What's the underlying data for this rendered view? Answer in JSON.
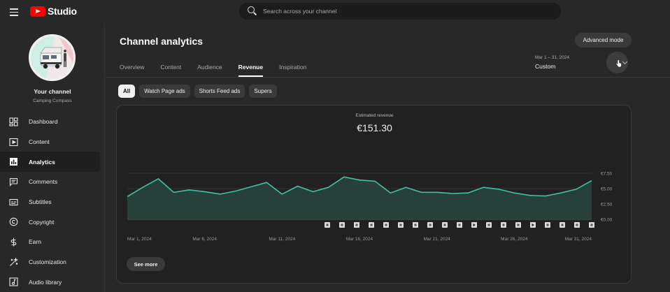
{
  "app": {
    "logo_text": "Studio",
    "search_placeholder": "Search across your channel"
  },
  "sidebar": {
    "channel_name": "Your channel",
    "channel_handle": "Camping Compass",
    "items": [
      {
        "label": "Dashboard",
        "icon": "dashboard-icon",
        "active": false
      },
      {
        "label": "Content",
        "icon": "content-icon",
        "active": false
      },
      {
        "label": "Analytics",
        "icon": "analytics-icon",
        "active": true
      },
      {
        "label": "Comments",
        "icon": "comments-icon",
        "active": false
      },
      {
        "label": "Subtitles",
        "icon": "subtitles-icon",
        "active": false
      },
      {
        "label": "Copyright",
        "icon": "copyright-icon",
        "active": false
      },
      {
        "label": "Earn",
        "icon": "earn-icon",
        "active": false
      },
      {
        "label": "Customization",
        "icon": "customization-icon",
        "active": false
      },
      {
        "label": "Audio library",
        "icon": "audio-library-icon",
        "active": false
      }
    ]
  },
  "main": {
    "title": "Channel analytics",
    "advanced_mode_label": "Advanced mode",
    "tabs": [
      {
        "label": "Overview",
        "active": false
      },
      {
        "label": "Content",
        "active": false
      },
      {
        "label": "Audience",
        "active": false
      },
      {
        "label": "Revenue",
        "active": true
      },
      {
        "label": "Inspiration",
        "active": false
      }
    ],
    "date_range": "Mar 1 – 31, 2024",
    "date_mode": "Custom",
    "chips": [
      {
        "label": "All",
        "active": true
      },
      {
        "label": "Watch Page ads",
        "active": false
      },
      {
        "label": "Shorts Feed ads",
        "active": false
      },
      {
        "label": "Supers",
        "active": false
      }
    ],
    "metric_label": "Estimated revenue",
    "metric_value": "€151.30",
    "see_more_label": "See more"
  },
  "colors": {
    "line": "#3fc1a5",
    "area": "#28403a",
    "accent_red": "#ff0000"
  },
  "chart_data": {
    "type": "area",
    "x": [
      "Mar 1",
      "Mar 2",
      "Mar 3",
      "Mar 4",
      "Mar 5",
      "Mar 6",
      "Mar 7",
      "Mar 8",
      "Mar 9",
      "Mar 10",
      "Mar 11",
      "Mar 12",
      "Mar 13",
      "Mar 14",
      "Mar 15",
      "Mar 16",
      "Mar 17",
      "Mar 18",
      "Mar 19",
      "Mar 20",
      "Mar 21",
      "Mar 22",
      "Mar 23",
      "Mar 24",
      "Mar 25",
      "Mar 26",
      "Mar 27",
      "Mar 28",
      "Mar 29",
      "Mar 30",
      "Mar 31"
    ],
    "x_tick_labels": [
      "Mar 1, 2024",
      "Mar 6, 2024",
      "Mar 11, 2024",
      "Mar 16, 2024",
      "Mar 21, 2024",
      "Mar 26, 2024",
      "Mar 31, 2024"
    ],
    "y_tick_labels": [
      "€7.50",
      "€5.00",
      "€2.50",
      "€0.00"
    ],
    "ylim": [
      0,
      7.5
    ],
    "series": [
      {
        "values": [
          3.7,
          5.2,
          6.6,
          4.4,
          4.8,
          4.5,
          4.1,
          4.6,
          5.3,
          6.0,
          4.1,
          5.4,
          4.5,
          5.2,
          6.9,
          6.4,
          6.2,
          4.3,
          5.2,
          4.4,
          4.4,
          4.2,
          4.3,
          5.2,
          4.9,
          4.3,
          3.9,
          3.8,
          4.3,
          4.9,
          6.3
        ]
      }
    ],
    "video_markers": [
      "short",
      "short",
      "short",
      "short",
      "short",
      "short",
      "short",
      "short",
      "short",
      "short",
      "video",
      "short",
      "short",
      "short",
      "video",
      "short",
      "short",
      "short",
      "short"
    ],
    "grid": true
  }
}
